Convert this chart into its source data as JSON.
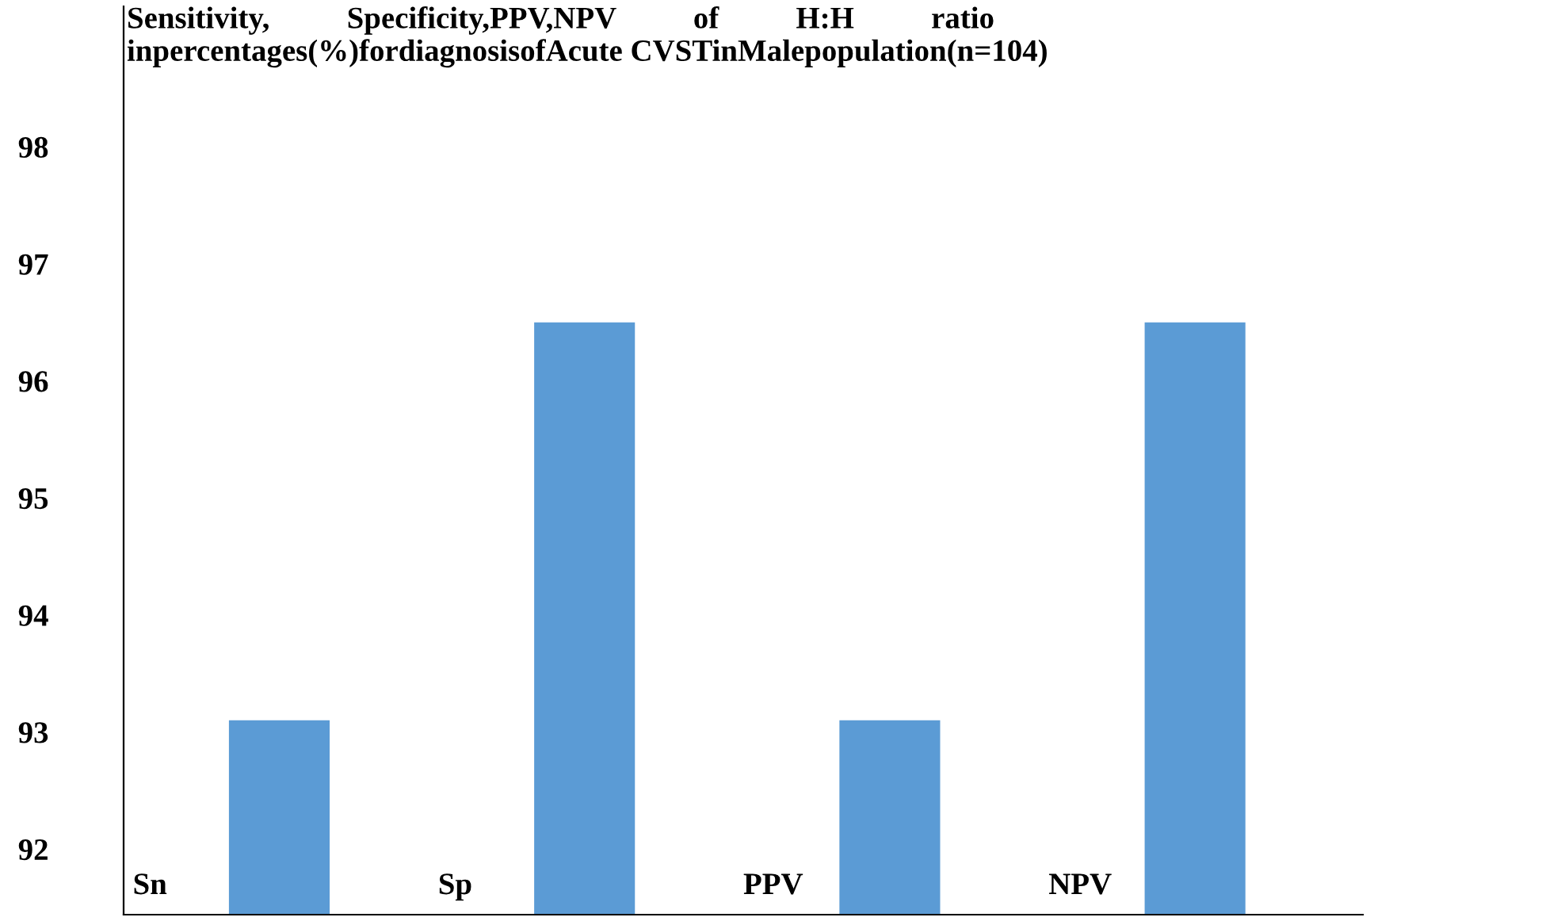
{
  "chart_data": {
    "type": "bar",
    "title": "Sensitivity,          Specificity,PPV,NPV          of          H:H          ratio\ninpercentages(%)fordiagnosisofAcute CVSTinMalepopulation(n=104)",
    "categories": [
      "Sn",
      "Sp",
      "PPV",
      "NPV"
    ],
    "values": [
      93.1,
      96.5,
      93.1,
      96.5
    ],
    "color": "#5b9bd5",
    "ylim": [
      91.44,
      99.2
    ],
    "yticks": [
      92,
      93,
      94,
      95,
      96,
      97,
      98
    ],
    "grid": false
  }
}
